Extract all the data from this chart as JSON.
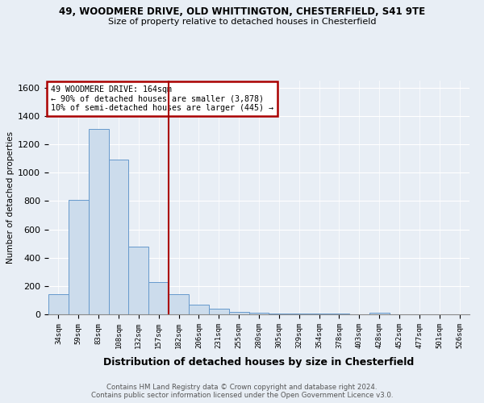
{
  "title1": "49, WOODMERE DRIVE, OLD WHITTINGTON, CHESTERFIELD, S41 9TE",
  "title2": "Size of property relative to detached houses in Chesterfield",
  "xlabel": "Distribution of detached houses by size in Chesterfield",
  "ylabel": "Number of detached properties",
  "footer1": "Contains HM Land Registry data © Crown copyright and database right 2024.",
  "footer2": "Contains public sector information licensed under the Open Government Licence v3.0.",
  "annotation_line1": "49 WOODMERE DRIVE: 164sqm",
  "annotation_line2": "← 90% of detached houses are smaller (3,878)",
  "annotation_line3": "10% of semi-detached houses are larger (445) →",
  "bar_color": "#ccdcec",
  "bar_edge_color": "#6699cc",
  "vline_color": "#aa0000",
  "annotation_box_edge": "#aa0000",
  "categories": [
    "34sqm",
    "59sqm",
    "83sqm",
    "108sqm",
    "132sqm",
    "157sqm",
    "182sqm",
    "206sqm",
    "231sqm",
    "255sqm",
    "280sqm",
    "305sqm",
    "329sqm",
    "354sqm",
    "378sqm",
    "403sqm",
    "428sqm",
    "452sqm",
    "477sqm",
    "501sqm",
    "526sqm"
  ],
  "values": [
    140,
    810,
    1310,
    1090,
    480,
    230,
    140,
    70,
    40,
    18,
    10,
    5,
    4,
    3,
    3,
    2,
    10,
    1,
    1,
    1,
    1
  ],
  "vline_position": 5.5,
  "ylim": [
    0,
    1650
  ],
  "yticks": [
    0,
    200,
    400,
    600,
    800,
    1000,
    1200,
    1400,
    1600
  ],
  "background_color": "#e8eef5",
  "plot_background": "#e8eef5",
  "grid_color": "#ffffff"
}
